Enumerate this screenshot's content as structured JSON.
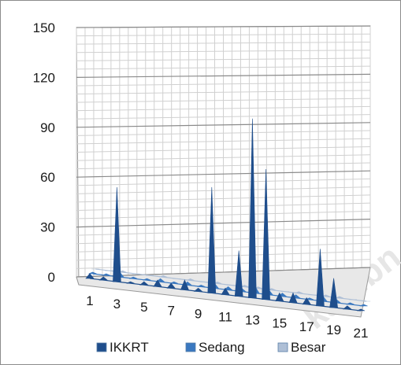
{
  "chart_data": {
    "type": "area",
    "style": "3d-perspective",
    "title": "",
    "xlabel": "",
    "ylabel": "",
    "ylim": [
      0,
      150
    ],
    "y_ticks": [
      "0",
      "30",
      "60",
      "90",
      "120",
      "150"
    ],
    "x": [
      1,
      2,
      3,
      4,
      5,
      6,
      7,
      8,
      9,
      10,
      11,
      12,
      13,
      14,
      15,
      16,
      17,
      18,
      19,
      20,
      21
    ],
    "x_tick_labels": [
      "1",
      "3",
      "5",
      "7",
      "9",
      "11",
      "13",
      "15",
      "17",
      "19",
      "21"
    ],
    "grid": true,
    "legend_position": "bottom",
    "series": [
      {
        "name": "IKKRT",
        "color": "#1f4e8c",
        "values": [
          3,
          2,
          58,
          1,
          2,
          4,
          3,
          6,
          2,
          65,
          4,
          28,
          110,
          80,
          5,
          6,
          4,
          35,
          18,
          2,
          1
        ]
      },
      {
        "name": "Sedang",
        "color": "#3a78c0",
        "values": [
          1,
          1,
          3,
          1,
          1,
          2,
          1,
          2,
          1,
          3,
          2,
          2,
          4,
          3,
          2,
          2,
          1,
          3,
          2,
          1,
          1
        ]
      },
      {
        "name": "Besar",
        "color": "#aebfd6",
        "values": [
          0,
          0,
          1,
          0,
          0,
          1,
          0,
          1,
          0,
          1,
          0,
          1,
          1,
          1,
          0,
          1,
          0,
          1,
          1,
          0,
          0
        ]
      }
    ]
  },
  "watermark_text": "kab.bn"
}
